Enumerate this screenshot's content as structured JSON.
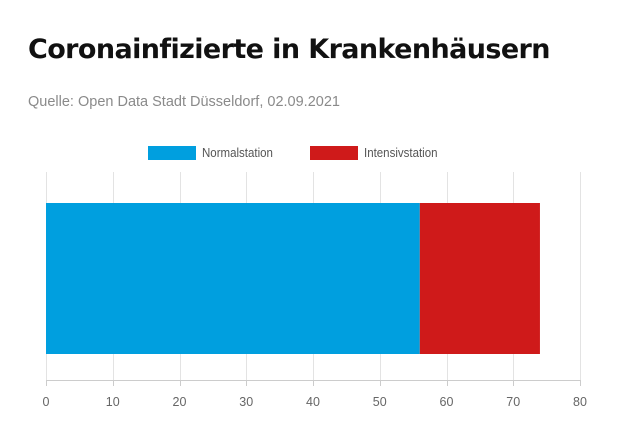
{
  "header": {
    "title": "Coronainfizierte in Krankenhäusern",
    "subtitle": "Quelle: Open Data Stadt Düsseldorf, 02.09.2021"
  },
  "chart_data": {
    "type": "bar",
    "orientation": "horizontal",
    "stacked": true,
    "categories": [
      ""
    ],
    "series": [
      {
        "name": "Normalstation",
        "values": [
          56
        ],
        "color": "#009fdf"
      },
      {
        "name": "Intensivstation",
        "values": [
          18
        ],
        "color": "#cf1a1a"
      }
    ],
    "xlim": [
      0,
      80
    ],
    "xticks": [
      0,
      10,
      20,
      30,
      40,
      50,
      60,
      70,
      80
    ],
    "xtick_labels": [
      "0",
      "10",
      "20",
      "30",
      "40",
      "50",
      "60",
      "70",
      "80"
    ],
    "grid": true,
    "legend_position": "top-center",
    "title": "Coronainfizierte in Krankenhäusern",
    "xlabel": "",
    "ylabel": ""
  }
}
